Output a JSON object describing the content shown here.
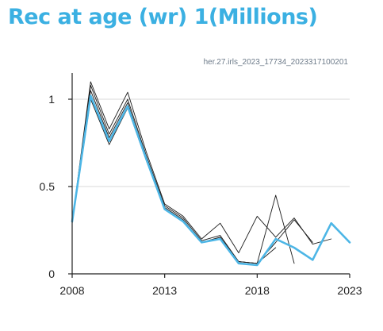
{
  "title": "Rec at age (wr) 1(Millions)",
  "source_label": "her.27.irls_2023_17734_2023317100201",
  "colors": {
    "title": "#3bb0e2",
    "main_series": "#4db6e6",
    "retro_series": "#1a1a1a",
    "grid": "#d9d9d9"
  },
  "chart_data": {
    "type": "line",
    "xlim": [
      2008,
      2023
    ],
    "ylim": [
      0,
      1.15
    ],
    "x_ticks": [
      2008,
      2013,
      2018,
      2023
    ],
    "y_ticks": [
      0,
      0.5,
      1
    ],
    "y_tick_labels": [
      "0",
      "0.5",
      "1"
    ],
    "grid": "horizontal",
    "series": [
      {
        "style": "retro",
        "x": [
          2008,
          2009,
          2010,
          2011,
          2012,
          2013,
          2014,
          2015,
          2016,
          2017,
          2018,
          2019,
          2020,
          2021,
          2022
        ],
        "values": [
          0.3,
          1.1,
          0.83,
          1.04,
          0.7,
          0.4,
          0.33,
          0.2,
          0.29,
          0.12,
          0.33,
          0.21,
          0.32,
          0.17,
          0.2
        ]
      },
      {
        "style": "retro",
        "x": [
          2008,
          2009,
          2010,
          2011,
          2012,
          2013,
          2014,
          2015,
          2016,
          2017,
          2018,
          2019,
          2020,
          2021
        ],
        "values": [
          0.3,
          1.08,
          0.8,
          1.0,
          0.68,
          0.39,
          0.32,
          0.19,
          0.22,
          0.07,
          0.06,
          0.18,
          0.31,
          0.18
        ]
      },
      {
        "style": "retro",
        "x": [
          2008,
          2009,
          2010,
          2011,
          2012,
          2013,
          2014,
          2015,
          2016,
          2017,
          2018,
          2019,
          2020
        ],
        "values": [
          0.29,
          1.05,
          0.78,
          0.98,
          0.67,
          0.38,
          0.31,
          0.18,
          0.21,
          0.07,
          0.06,
          0.45,
          0.06
        ]
      },
      {
        "style": "retro",
        "x": [
          2008,
          2009,
          2010,
          2011,
          2012,
          2013,
          2014,
          2015,
          2016,
          2017,
          2018,
          2019
        ],
        "values": [
          0.29,
          1.0,
          0.74,
          0.95,
          0.65,
          0.37,
          0.3,
          0.18,
          0.21,
          0.07,
          0.06,
          0.15
        ]
      },
      {
        "style": "main",
        "x": [
          2008,
          2009,
          2010,
          2011,
          2012,
          2013,
          2014,
          2015,
          2016,
          2017,
          2018,
          2019,
          2020,
          2021,
          2022,
          2023
        ],
        "values": [
          0.3,
          1.02,
          0.76,
          0.96,
          0.66,
          0.37,
          0.3,
          0.18,
          0.2,
          0.06,
          0.05,
          0.2,
          0.15,
          0.08,
          0.29,
          0.18
        ]
      }
    ]
  }
}
